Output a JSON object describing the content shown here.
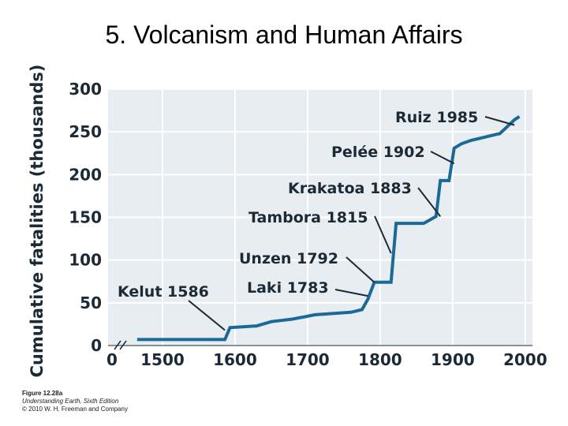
{
  "slide": {
    "title": "5. Volcanism and Human Affairs"
  },
  "chart_data": {
    "type": "line",
    "title": "",
    "xlabel": "",
    "ylabel": "Cumulative fatalities (thousands)",
    "xlim": [
      1425,
      2010
    ],
    "ylim": [
      0,
      300
    ],
    "x_ticks": [
      "0",
      "1500",
      "1600",
      "1700",
      "1800",
      "1900",
      "2000"
    ],
    "y_ticks": [
      "0",
      "50",
      "100",
      "150",
      "200",
      "250",
      "300"
    ],
    "axis_break": "between 0 and 1500",
    "grid": true,
    "step": true,
    "series": [
      {
        "x": [
          1465,
          1586,
          1593,
          1630,
          1650,
          1680,
          1710,
          1760,
          1775,
          1783,
          1792,
          1815,
          1822,
          1860,
          1877,
          1883,
          1895,
          1902,
          1912,
          1925,
          1950,
          1965,
          1985,
          1992
        ],
        "y": [
          7,
          7,
          21,
          23,
          28,
          31,
          36,
          39,
          42,
          54,
          74,
          74,
          143,
          143,
          151,
          193,
          193,
          231,
          236,
          240,
          245,
          248,
          264,
          268
        ]
      }
    ],
    "annotations": [
      {
        "label": "Kelut 1586",
        "x": 1586,
        "y": 18
      },
      {
        "label": "Laki 1783",
        "x": 1783,
        "y": 58
      },
      {
        "label": "Unzen 1792",
        "x": 1792,
        "y": 74
      },
      {
        "label": "Tambora 1815",
        "x": 1815,
        "y": 108
      },
      {
        "label": "Krakatoa 1883",
        "x": 1883,
        "y": 151
      },
      {
        "label": "Pelée 1902",
        "x": 1902,
        "y": 213
      },
      {
        "label": "Ruiz 1985",
        "x": 1985,
        "y": 258
      }
    ],
    "line_color": "#1b6a96",
    "plot_background": "#e8edf2",
    "grid_color": "#ffffff"
  },
  "credit": {
    "figure": "Figure 12.28a",
    "book": "Understanding Earth, Sixth Edition",
    "copyright": "© 2010 W. H. Freeman and Company"
  }
}
